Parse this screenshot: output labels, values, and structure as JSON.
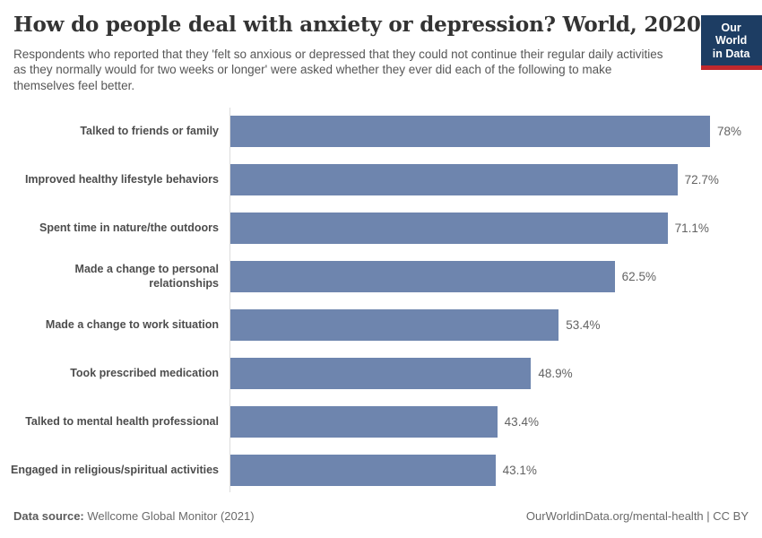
{
  "header": {
    "title": "How do people deal with anxiety or depression? World, 2020",
    "subtitle": "Respondents who reported that they 'felt so anxious or depressed that they could not continue their regular daily activities as they normally would for two weeks or longer' were asked whether they ever did each of the following to make themselves feel better.",
    "logo": {
      "line1": "Our World",
      "line2": "in Data"
    }
  },
  "chart_data": {
    "type": "bar",
    "orientation": "horizontal",
    "title": "How do people deal with anxiety or depression? World, 2020",
    "xlabel": "",
    "ylabel": "",
    "categories": [
      "Talked to friends or family",
      "Improved healthy lifestyle behaviors",
      "Spent time in nature/the outdoors",
      "Made a change to personal relationships",
      "Made a change to work situation",
      "Took prescribed medication",
      "Talked to mental health professional",
      "Engaged in religious/spiritual activities"
    ],
    "values": [
      78,
      72.7,
      71.1,
      62.5,
      53.4,
      48.9,
      43.4,
      43.1
    ],
    "value_labels": [
      "78%",
      "72.7%",
      "71.1%",
      "62.5%",
      "53.4%",
      "48.9%",
      "43.4%",
      "43.1%"
    ],
    "unit": "%",
    "xlim": [
      0,
      85
    ],
    "grid": false,
    "legend": false,
    "bar_color": "#6e85ae"
  },
  "colors": {
    "bar": "#6e85ae",
    "axis_line": "#dcdcdc",
    "logo_background": "#1d3d63",
    "logo_accent": "#c0282d",
    "title_text": "#333333",
    "body_text": "#565656"
  },
  "footer": {
    "data_source_label": "Data source:",
    "data_source_value": "Wellcome Global Monitor (2021)",
    "attribution": "OurWorldinData.org/mental-health | CC BY"
  }
}
